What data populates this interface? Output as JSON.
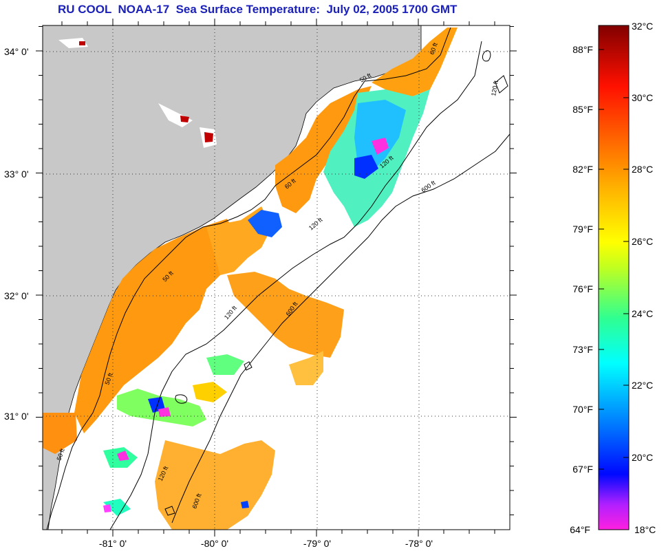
{
  "title": "RU COOL  NOAA-17  Sea Surface Temperature:  July 02, 2005 1700 GMT",
  "map": {
    "lat_labels": [
      "34° 0'",
      "33° 0'",
      "32° 0'",
      "31° 0'"
    ],
    "lon_labels": [
      "-81° 0'",
      "-80° 0'",
      "-79° 0'",
      "-78° 0'"
    ],
    "contour_labels": [
      "60 ft",
      "120 ft",
      "600 ft",
      "60 ft",
      "120 ft",
      "600 ft",
      "60 ft",
      "120 ft",
      "600 ft",
      "60 ft",
      "120 ft",
      "600 ft",
      "60 ft",
      "120 ft"
    ]
  },
  "colorbar": {
    "fahrenheit_labels": [
      "88°F",
      "85°F",
      "82°F",
      "79°F",
      "76°F",
      "73°F",
      "70°F",
      "67°F",
      "64°F"
    ],
    "celsius_labels": [
      "32°C",
      "30°C",
      "28°C",
      "26°C",
      "24°C",
      "22°C",
      "20°C",
      "18°C"
    ],
    "colors": {
      "c18": "#ff20e0",
      "c19": "#8020ff",
      "c20": "#0008ff",
      "c22": "#0080ff",
      "c23": "#00ffff",
      "c24": "#30ff90",
      "c25": "#80ff40",
      "c26": "#e0ff00",
      "c27": "#ffd000",
      "c28": "#ff9000",
      "c29": "#ff5000",
      "c30": "#ff0000",
      "c32": "#8a0000"
    }
  }
}
